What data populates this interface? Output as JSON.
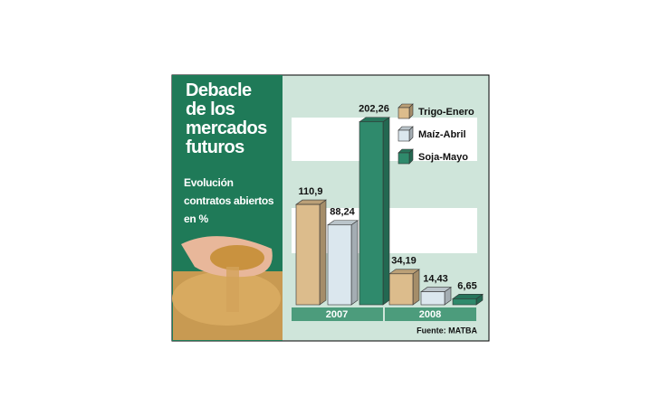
{
  "chart_data": {
    "type": "bar3d",
    "title": "Debacle de los mercados futuros",
    "subtitle": "Evolución contratos abiertos en %",
    "source": "Fuente: MATBA",
    "categories": [
      "2007",
      "2008"
    ],
    "series": [
      {
        "name": "Trigo-Enero",
        "color": "#dcbc8c",
        "values": [
          110.9,
          34.19
        ],
        "value_labels": [
          "110,9",
          "34,19"
        ]
      },
      {
        "name": "Maíz-Abril",
        "color": "#dbe7ee",
        "values": [
          88.24,
          14.43
        ],
        "value_labels": [
          "88,24",
          "14,43"
        ]
      },
      {
        "name": "Soja-Mayo",
        "color": "#2f8a6c",
        "values": [
          202.26,
          6.65
        ],
        "value_labels": [
          "202,26",
          "6,65"
        ]
      }
    ],
    "ylim": [
      0,
      215
    ]
  }
}
